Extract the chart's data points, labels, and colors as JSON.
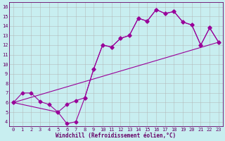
{
  "xlabel": "Windchill (Refroidissement éolien,°C)",
  "background_color": "#c8eef0",
  "grid_color": "#b0b0b0",
  "line_color": "#990099",
  "xlim": [
    -0.5,
    23.5
  ],
  "ylim": [
    3.5,
    16.5
  ],
  "xticks": [
    0,
    1,
    2,
    3,
    4,
    5,
    6,
    7,
    8,
    9,
    10,
    11,
    12,
    13,
    14,
    15,
    16,
    17,
    18,
    19,
    20,
    21,
    22,
    23
  ],
  "yticks": [
    4,
    5,
    6,
    7,
    8,
    9,
    10,
    11,
    12,
    13,
    14,
    15,
    16
  ],
  "line1_x": [
    0,
    1,
    2,
    3,
    4,
    5,
    6,
    7,
    8,
    9,
    10,
    11,
    12,
    13,
    14,
    15,
    16,
    17,
    18,
    19,
    20,
    21,
    22,
    23
  ],
  "line1_y": [
    6.0,
    7.0,
    7.0,
    6.1,
    5.8,
    5.0,
    5.8,
    6.2,
    6.5,
    9.5,
    12.0,
    11.8,
    12.7,
    13.0,
    14.8,
    14.5,
    15.7,
    15.3,
    15.5,
    14.4,
    14.1,
    12.0,
    13.8,
    12.3
  ],
  "line2_x": [
    0,
    5,
    6,
    7,
    8,
    9,
    10,
    11,
    12,
    13,
    14,
    15,
    16,
    17,
    18,
    19,
    20,
    21,
    22,
    23
  ],
  "line2_y": [
    6.0,
    5.0,
    3.8,
    4.0,
    6.5,
    9.5,
    12.0,
    11.8,
    12.7,
    13.0,
    14.8,
    14.5,
    15.7,
    15.3,
    15.5,
    14.4,
    14.1,
    12.0,
    13.8,
    12.3
  ],
  "line3_x": [
    0,
    23
  ],
  "line3_y": [
    6.0,
    12.3
  ]
}
